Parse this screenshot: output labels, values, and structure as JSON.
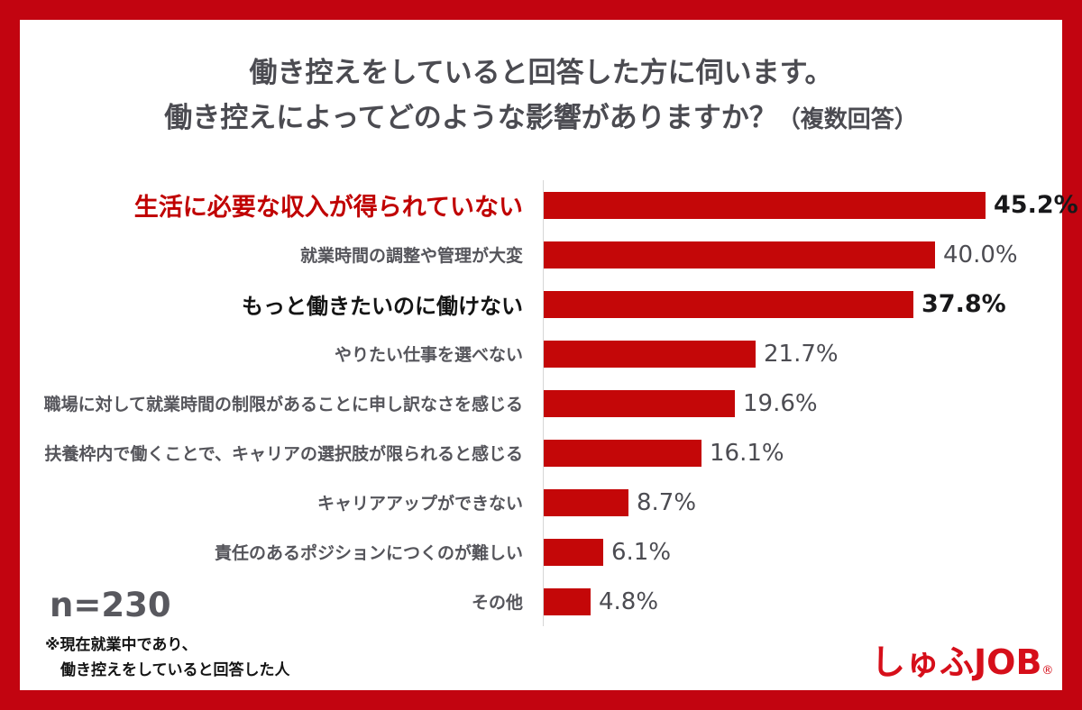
{
  "frame": {
    "border_color": "#c20410",
    "background": "#ffffff"
  },
  "title": {
    "line1": "働き控えをしていると回答した方に伺います。",
    "line2_main": "働き控えによってどのような影響がありますか？",
    "line2_suffix": "（複数回答）"
  },
  "chart_data": {
    "type": "bar",
    "orientation": "horizontal",
    "title": "働き控えによってどのような影響がありますか？（複数回答）",
    "unit": "%",
    "xlim": [
      0,
      50
    ],
    "grid": false,
    "legend": "none",
    "categories": [
      "生活に必要な収入が得られていない",
      "就業時間の調整や管理が大変",
      "もっと働きたいのに働けない",
      "やりたい仕事を選べない",
      "職場に対して就業時間の制限があることに申し訳なさを感じる",
      "扶養枠内で働くことで、キャリアの選択肢が限られると感じる",
      "キャリアアップができない",
      "責任のあるポジションにつくのが難しい",
      "その他"
    ],
    "values": [
      45.2,
      40.0,
      37.8,
      21.7,
      19.6,
      16.1,
      8.7,
      6.1,
      4.8
    ],
    "value_labels": [
      "45.2%",
      "40.0%",
      "37.8%",
      "21.7%",
      "19.6%",
      "16.1%",
      "8.7%",
      "6.1%",
      "4.8%"
    ],
    "emphasis": [
      "red-bold",
      "normal",
      "black-bold",
      "normal",
      "normal",
      "normal",
      "normal",
      "normal",
      "normal"
    ],
    "bar_color": "#c40708",
    "axis_line_color": "#d6d6d6",
    "emphasis_red_label_color": "#c00000"
  },
  "sample_size": "n=230",
  "footnote": {
    "line1": "※現在就業中であり、",
    "line2": "働き控えをしていると回答した人"
  },
  "logo": {
    "text": "しゅふJOB",
    "registered_mark": "®",
    "color": "#d60f1a"
  }
}
